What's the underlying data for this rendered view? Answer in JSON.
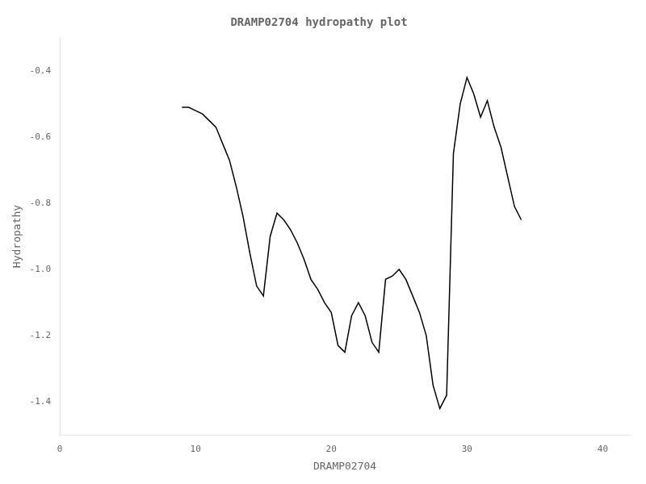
{
  "chart_data": {
    "type": "line",
    "title": "DRAMP02704 hydropathy plot",
    "xlabel": "DRAMP02704",
    "ylabel": "Hydropathy",
    "x": [
      9.0,
      9.5,
      10.0,
      10.5,
      11.0,
      11.5,
      12.0,
      12.5,
      13.0,
      13.5,
      14.0,
      14.5,
      15.0,
      15.5,
      16.0,
      16.5,
      17.0,
      17.5,
      18.0,
      18.5,
      19.0,
      19.5,
      20.0,
      20.5,
      21.0,
      21.5,
      22.0,
      22.5,
      23.0,
      23.5,
      24.0,
      24.5,
      25.0,
      25.5,
      26.0,
      26.5,
      27.0,
      27.5,
      28.0,
      28.5,
      29.0,
      29.5,
      30.0,
      30.5,
      31.0,
      31.5,
      32.0,
      32.5,
      33.0,
      33.5,
      34.0
    ],
    "values": [
      -0.51,
      -0.51,
      -0.52,
      -0.53,
      -0.55,
      -0.57,
      -0.62,
      -0.67,
      -0.75,
      -0.84,
      -0.95,
      -1.05,
      -1.08,
      -0.9,
      -0.83,
      -0.85,
      -0.88,
      -0.92,
      -0.97,
      -1.03,
      -1.06,
      -1.1,
      -1.13,
      -1.23,
      -1.25,
      -1.14,
      -1.1,
      -1.14,
      -1.22,
      -1.25,
      -1.03,
      -1.02,
      -1.0,
      -1.03,
      -1.08,
      -1.13,
      -1.2,
      -1.35,
      -1.42,
      -1.38,
      -0.65,
      -0.5,
      -0.42,
      -0.47,
      -0.54,
      -0.49,
      -0.57,
      -0.63,
      -0.72,
      -0.81,
      -0.85
    ],
    "color": "#000000",
    "xlim": [
      0,
      42
    ],
    "xticks": [
      0,
      10,
      20,
      30,
      40
    ],
    "ylim": [
      -1.5,
      -0.3
    ],
    "yticks": [
      -1.4,
      -1.2,
      {
        "value": -1.0,
        "label": "-1.0"
      },
      -0.8,
      -0.6,
      -0.4
    ],
    "grid": false
  }
}
